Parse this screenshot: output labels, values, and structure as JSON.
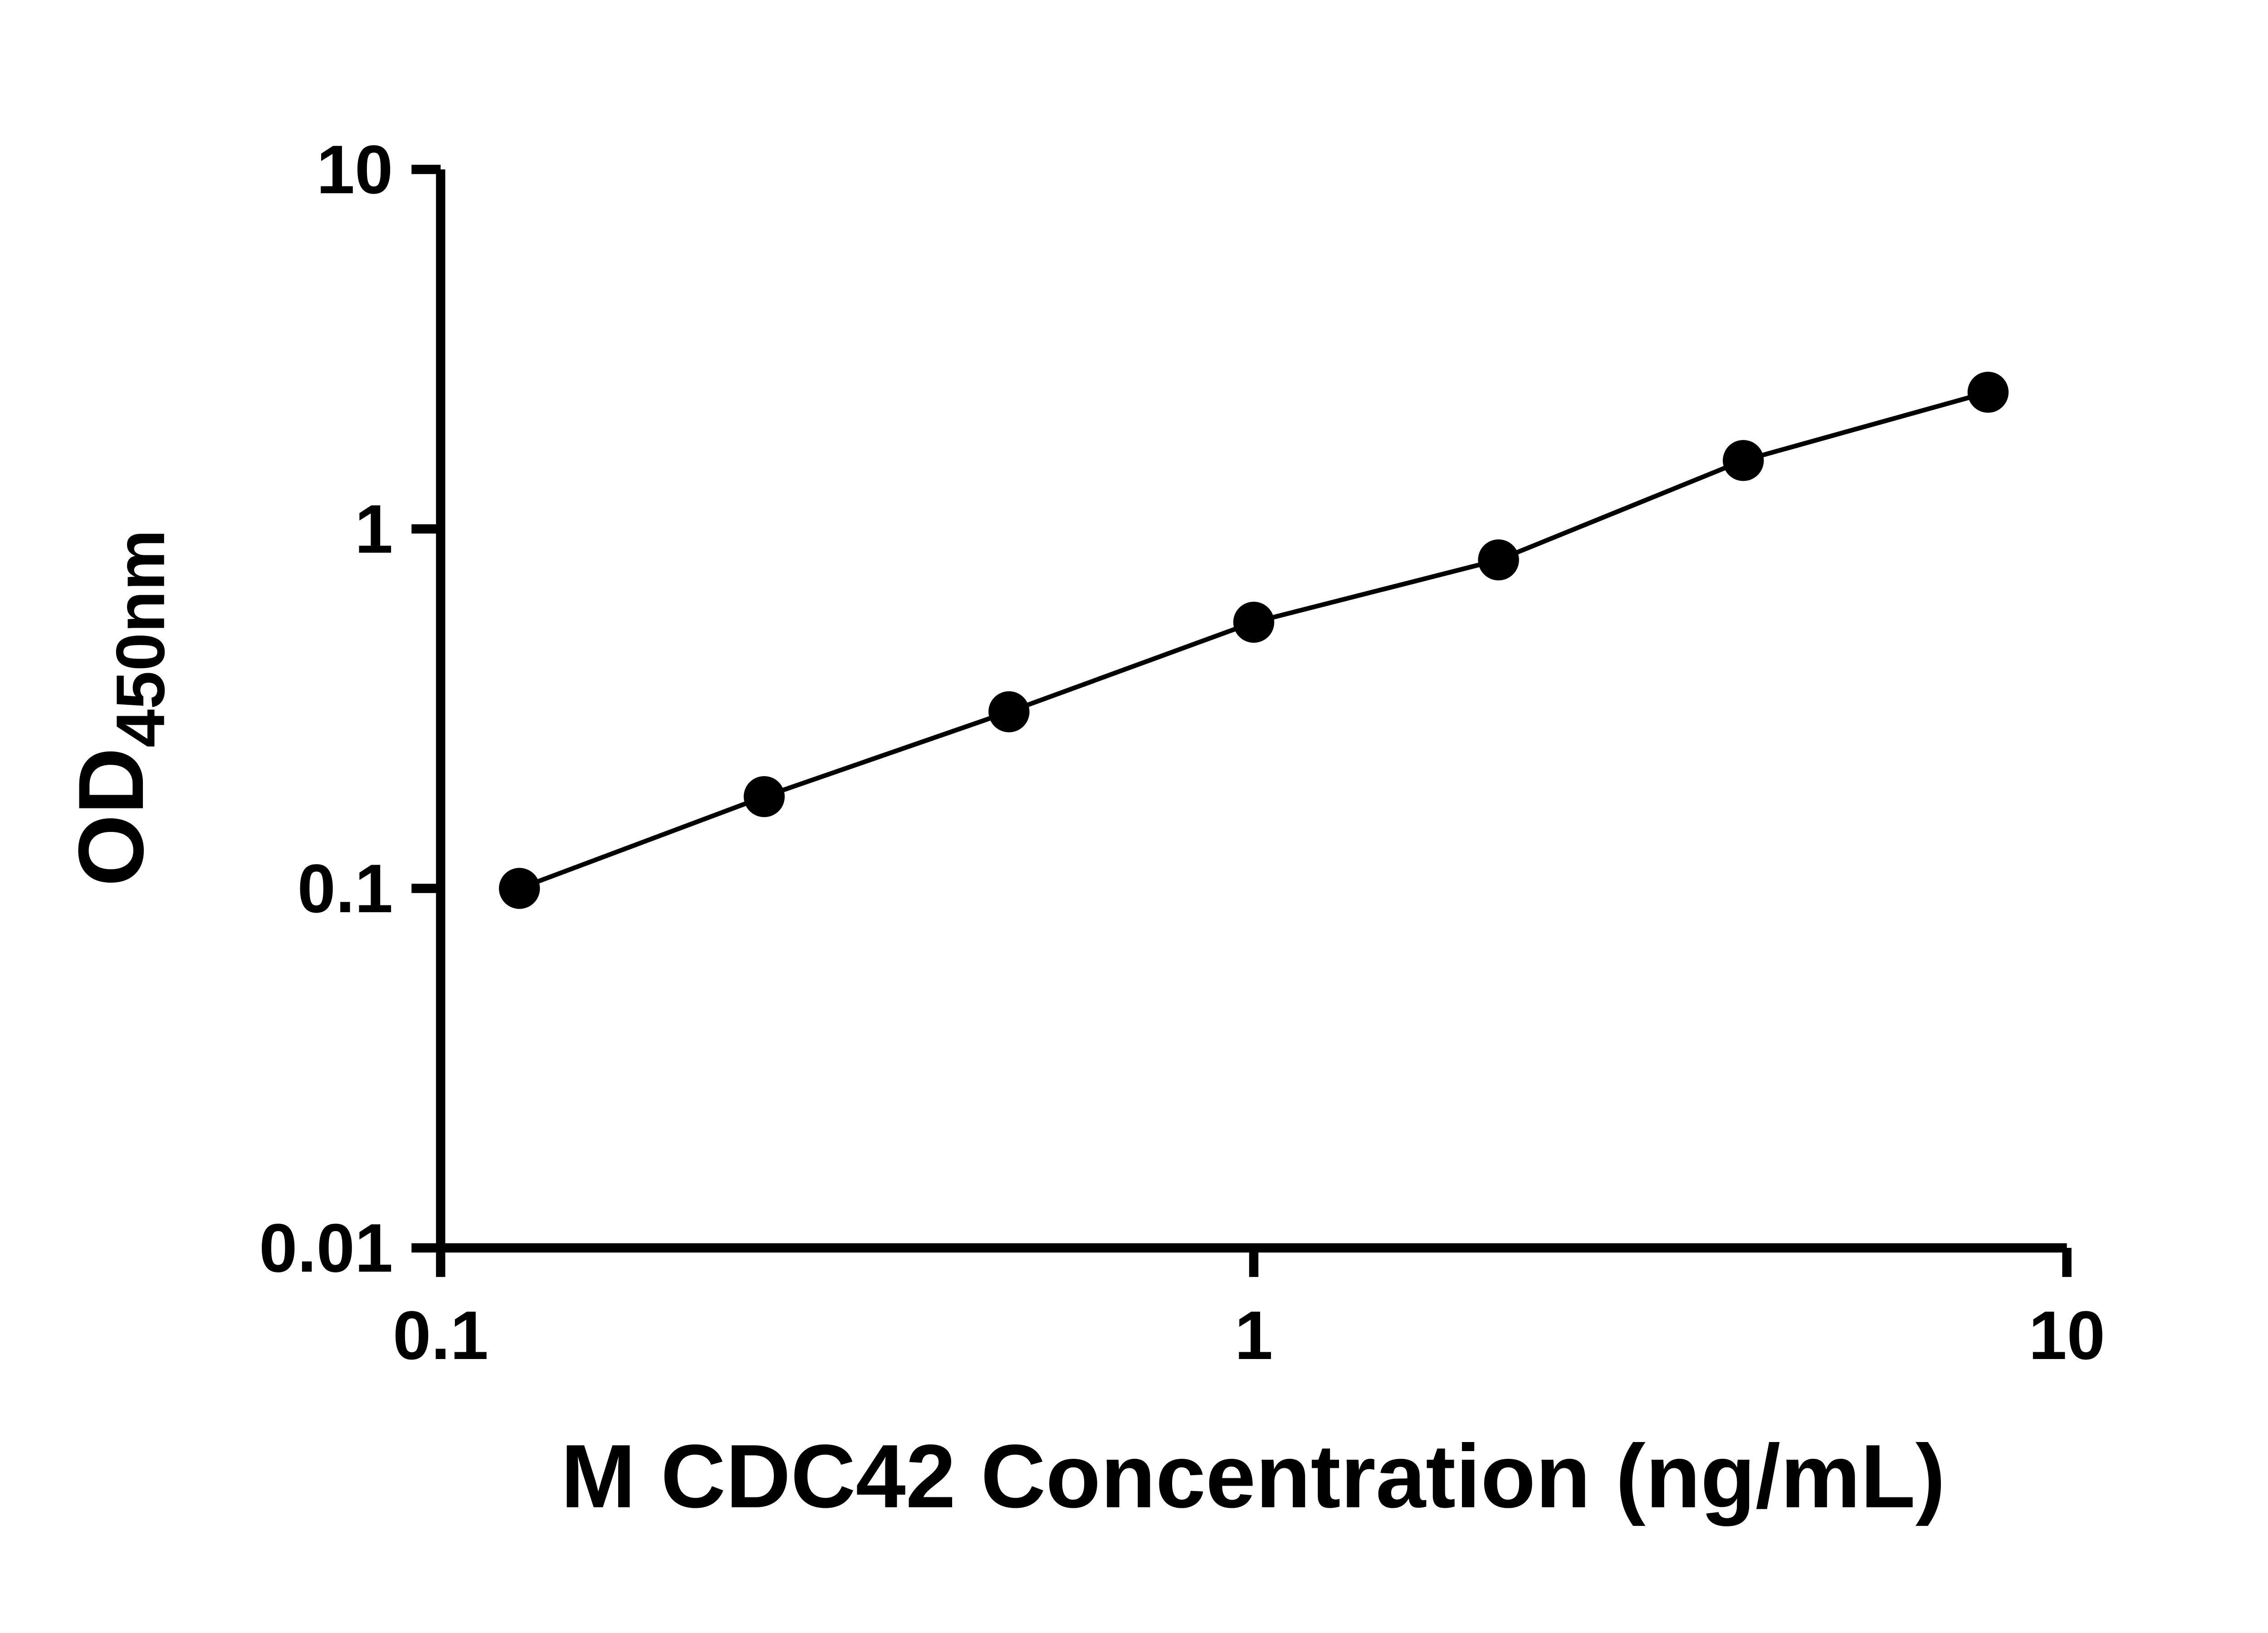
{
  "chart_data": {
    "type": "scatter",
    "subtype": "standard-curve-with-connecting-line",
    "title": "",
    "xlabel": "M CDC42 Concentration (ng/mL)",
    "ylabel": "OD450nm",
    "ylabel_main": "OD",
    "ylabel_sub": "450nm",
    "x_scale": "log",
    "y_scale": "log",
    "xlim": [
      0.1,
      10
    ],
    "ylim": [
      0.01,
      10
    ],
    "grid": false,
    "legend": "none",
    "background": "#ffffff",
    "axis_color": "#000000",
    "x_ticks": [
      {
        "value": 0.1,
        "label": "0.1"
      },
      {
        "value": 1,
        "label": "1"
      },
      {
        "value": 10,
        "label": "10"
      }
    ],
    "y_ticks": [
      {
        "value": 10,
        "label": "10"
      },
      {
        "value": 1,
        "label": "1"
      },
      {
        "value": 0.1,
        "label": "0.1"
      },
      {
        "value": 0.01,
        "label": "0.01"
      }
    ],
    "series": [
      {
        "marker": "filled-circle",
        "color": "#000000",
        "line": true,
        "points": [
          {
            "x": 0.125,
            "y": 0.1
          },
          {
            "x": 0.25,
            "y": 0.18
          },
          {
            "x": 0.5,
            "y": 0.31
          },
          {
            "x": 1,
            "y": 0.55
          },
          {
            "x": 2,
            "y": 0.82
          },
          {
            "x": 4,
            "y": 1.55
          },
          {
            "x": 8,
            "y": 2.4
          }
        ]
      }
    ]
  }
}
